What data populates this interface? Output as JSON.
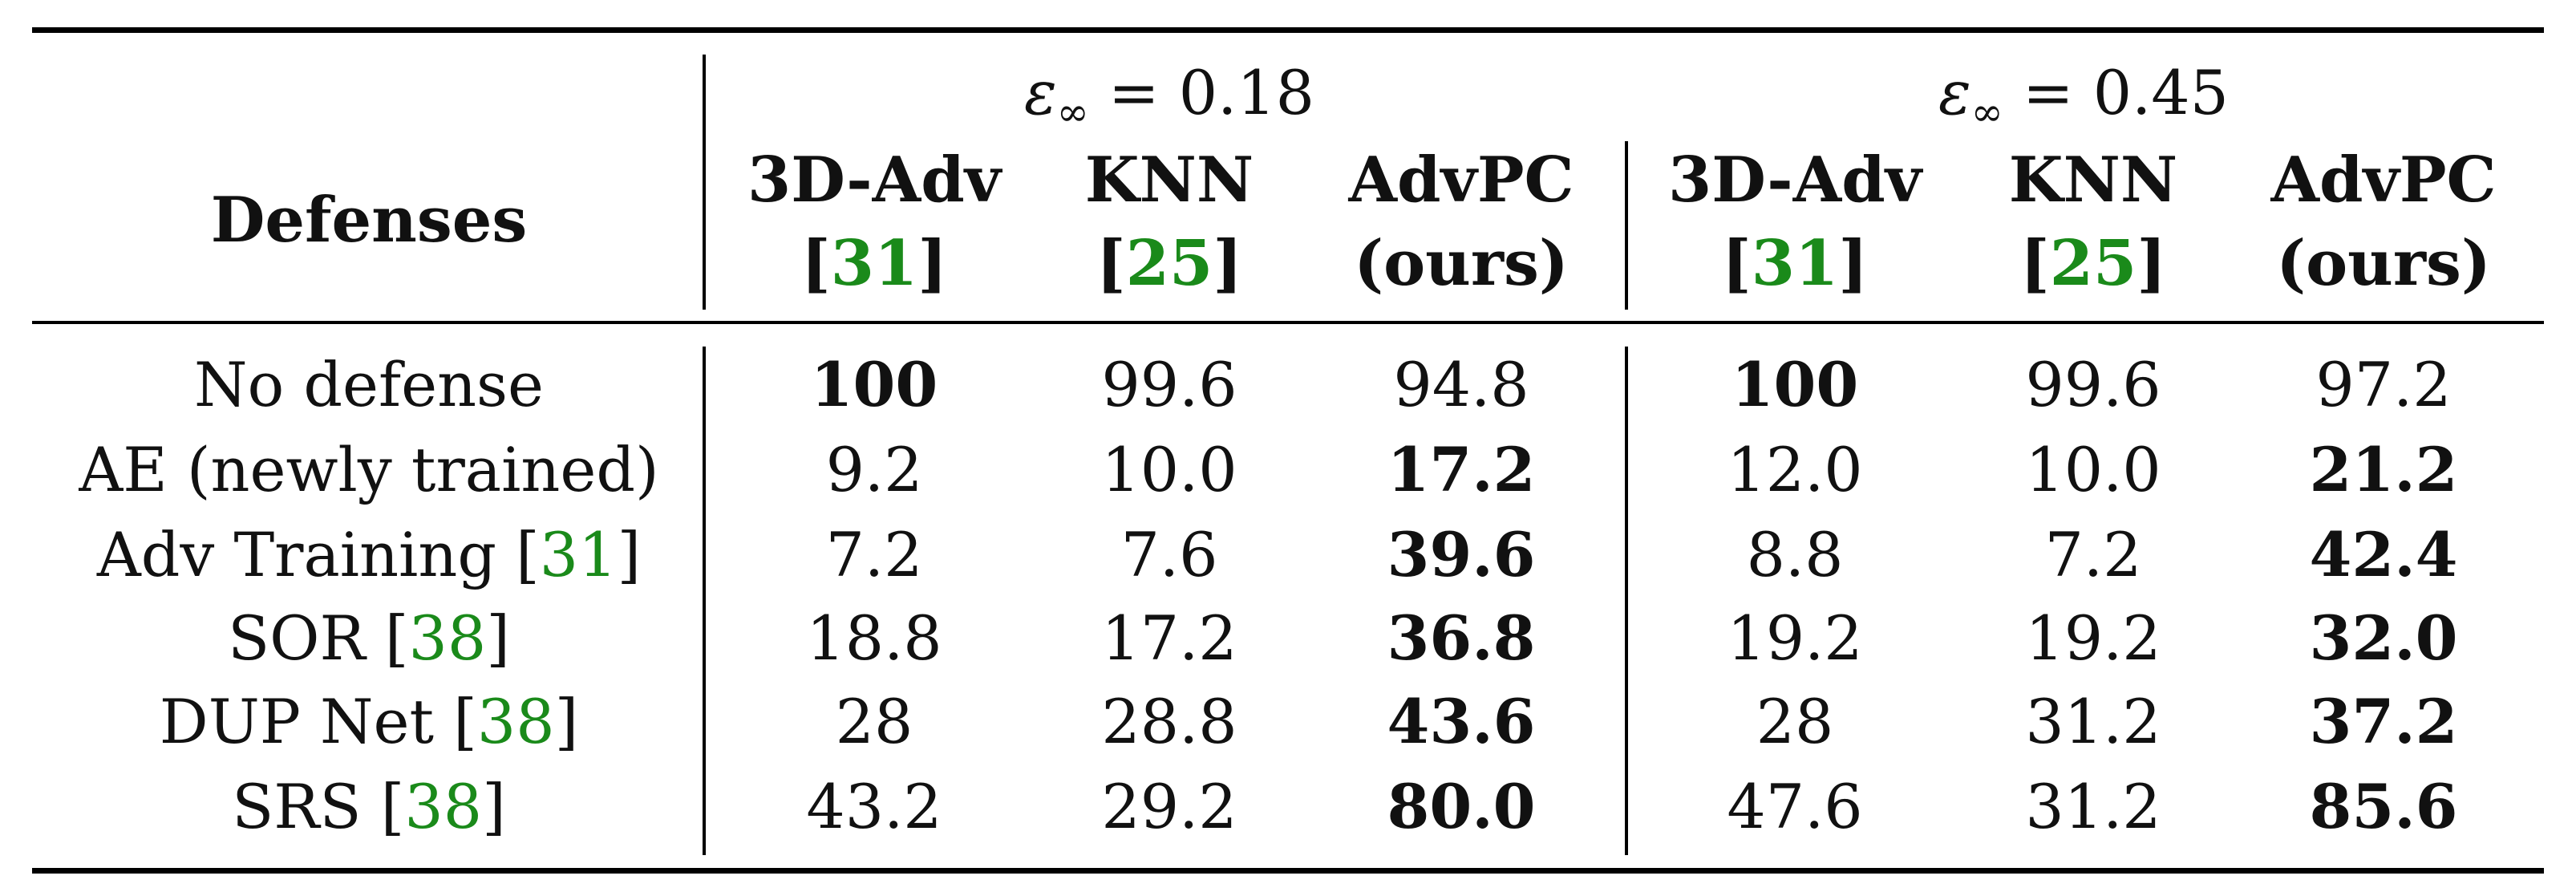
{
  "table": {
    "row_header": "Defenses",
    "groups": [
      {
        "epsilon_symbol": "ε",
        "epsilon_sub": "∞",
        "epsilon_value": "= 0.18"
      },
      {
        "epsilon_symbol": "ε",
        "epsilon_sub": "∞",
        "epsilon_value": "= 0.45"
      }
    ],
    "methods": [
      {
        "name": "3D-Adv",
        "cite": "31",
        "sub": ""
      },
      {
        "name": "KNN",
        "cite": "25",
        "sub": ""
      },
      {
        "name": "AdvPC",
        "cite": "",
        "sub": "(ours)"
      }
    ],
    "rows": [
      {
        "label": "No defense",
        "cite": "",
        "values": [
          "100",
          "99.6",
          "94.8",
          "100",
          "99.6",
          "97.2"
        ],
        "bold": [
          true,
          false,
          false,
          true,
          false,
          false
        ]
      },
      {
        "label": "AE (newly trained)",
        "cite": "",
        "values": [
          "9.2",
          "10.0",
          "17.2",
          "12.0",
          "10.0",
          "21.2"
        ],
        "bold": [
          false,
          false,
          true,
          false,
          false,
          true
        ]
      },
      {
        "label": "Adv Training",
        "cite": "31",
        "values": [
          "7.2",
          "7.6",
          "39.6",
          "8.8",
          "7.2",
          "42.4"
        ],
        "bold": [
          false,
          false,
          true,
          false,
          false,
          true
        ]
      },
      {
        "label": "SOR",
        "cite": "38",
        "values": [
          "18.8",
          "17.2",
          "36.8",
          "19.2",
          "19.2",
          "32.0"
        ],
        "bold": [
          false,
          false,
          true,
          false,
          false,
          true
        ]
      },
      {
        "label": "DUP Net",
        "cite": "38",
        "values": [
          "28",
          "28.8",
          "43.6",
          "28",
          "31.2",
          "37.2"
        ],
        "bold": [
          false,
          false,
          true,
          false,
          false,
          true
        ]
      },
      {
        "label": "SRS",
        "cite": "38",
        "values": [
          "43.2",
          "29.2",
          "80.0",
          "47.6",
          "31.2",
          "85.6"
        ],
        "bold": [
          false,
          false,
          true,
          false,
          false,
          true
        ]
      }
    ],
    "colors": {
      "citation": "#1a8a1a",
      "rule": "#000000"
    }
  }
}
